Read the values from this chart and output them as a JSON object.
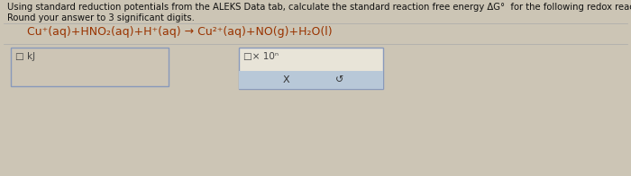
{
  "bg_color": "#ccc5b5",
  "text_line1": "Using standard reduction potentials from the ALEKS Data tab, calculate the standard reaction free energy ΔG°  for the following redox reaction.",
  "text_line2": "Round your answer to 3 significant digits.",
  "eq_text": "Cu⁺(aq)+HNO₂(aq)+H⁺(aq) → Cu²⁺(aq)+NO(g)+H₂O(l)",
  "left_box_label": "□ kJ",
  "right_box_top_label": "□× 10ⁿ",
  "btn_x": "X",
  "btn_undo": "↺",
  "separator_color": "#aaaaaa",
  "box_border_color": "#8899bb",
  "left_box_bg": "#cdc5b5",
  "right_box_bg": "#e8e4d8",
  "blue_bar_color": "#b8c8d8",
  "text_color": "#111111",
  "eq_color": "#993300",
  "label_color": "#444444",
  "btn_color": "#333333",
  "title_fontsize": 7.2,
  "eq_fontsize": 9.0,
  "label_fontsize": 7.5,
  "btn_fontsize": 8.0
}
